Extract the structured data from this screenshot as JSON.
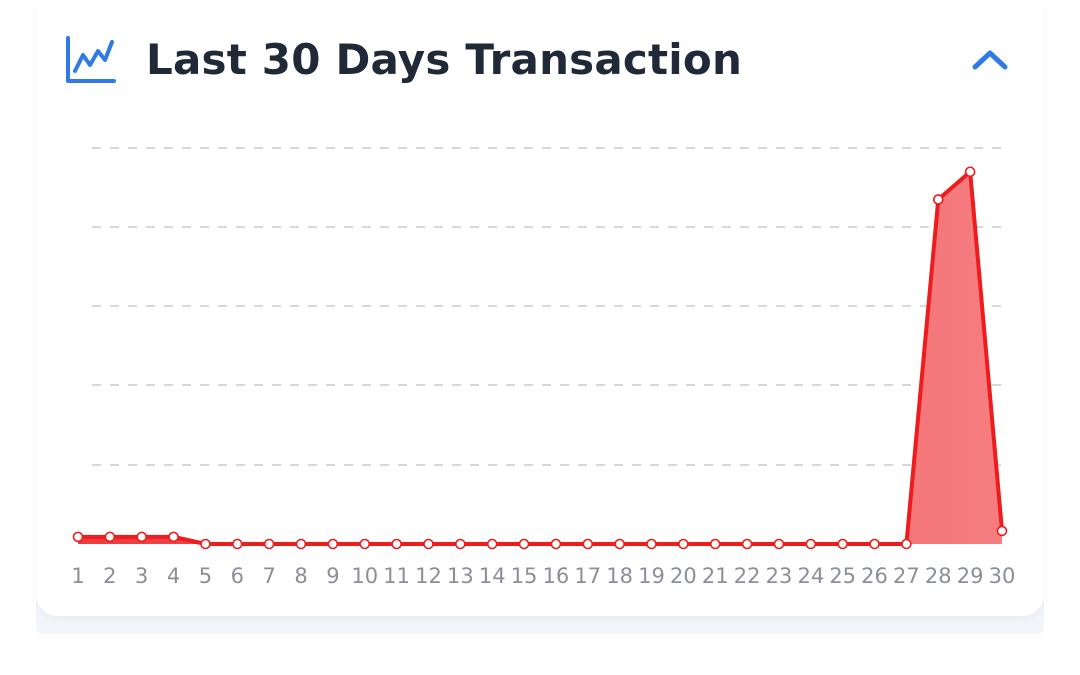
{
  "card": {
    "title": "Last 30 Days Transaction",
    "title_icon": "line-chart-icon",
    "collapse_icon": "chevron-up-icon"
  },
  "colors": {
    "accent": "#2f7ae5",
    "title": "#1f2937",
    "series_line": "#ee1c1c",
    "series_fill": "#f0585d",
    "grid": "#c9ccd1",
    "tick_label": "#8a8f98",
    "card_footer": "#f2f5f9"
  },
  "chart_data": {
    "type": "area",
    "title": "Last 30 Days Transaction",
    "xlabel": "",
    "ylabel": "",
    "x": [
      "1",
      "2",
      "3",
      "4",
      "5",
      "6",
      "7",
      "8",
      "9",
      "10",
      "11",
      "12",
      "13",
      "14",
      "15",
      "16",
      "17",
      "18",
      "19",
      "20",
      "21",
      "22",
      "23",
      "24",
      "25",
      "26",
      "27",
      "28",
      "29",
      "30"
    ],
    "series": [
      {
        "values": [
          0.18,
          0.18,
          0.18,
          0.18,
          0,
          0,
          0,
          0,
          0,
          0,
          0,
          0,
          0,
          0,
          0,
          0,
          0,
          0,
          0,
          0,
          0,
          0,
          0,
          0,
          0,
          0,
          0,
          8.7,
          9.4,
          0.33
        ]
      }
    ],
    "ylim": [
      0,
      10
    ],
    "grid": true,
    "grid_style": "dashed horizontal",
    "y_tick_labels_shown": false,
    "legend": "none"
  }
}
